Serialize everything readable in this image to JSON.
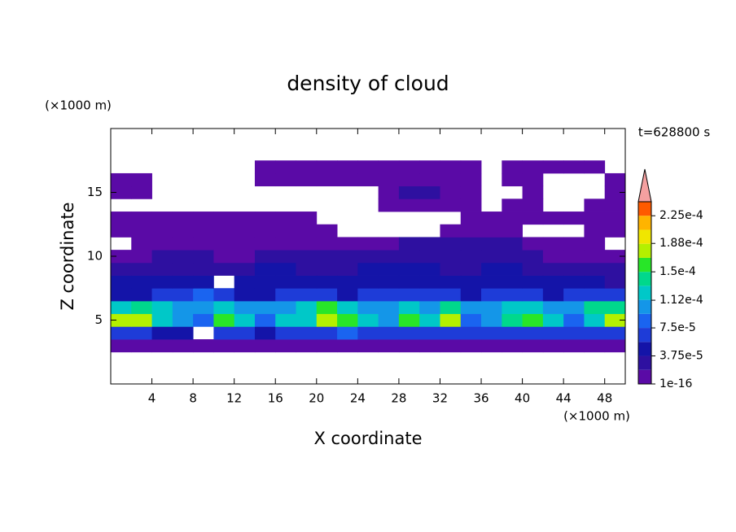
{
  "chart_data": {
    "type": "contour",
    "title": "density of cloud",
    "xlabel": "X coordinate",
    "ylabel": "Z coordinate",
    "x_unit": "(×1000 m)",
    "y_unit": "(×1000 m)",
    "annotation": "t=628800 s",
    "xlim": [
      0,
      50
    ],
    "ylim": [
      0,
      20
    ],
    "xticks": [
      4,
      8,
      12,
      16,
      20,
      24,
      28,
      32,
      36,
      40,
      44,
      48
    ],
    "yticks": [
      5,
      10,
      15
    ],
    "x": [
      1,
      3,
      5,
      7,
      9,
      11,
      13,
      15,
      17,
      19,
      21,
      23,
      25,
      27,
      29,
      31,
      33,
      35,
      37,
      39,
      41,
      43,
      45,
      47,
      49
    ],
    "y": [
      3,
      4,
      5,
      6,
      7,
      8,
      9,
      10,
      11,
      12,
      13,
      14,
      15,
      16,
      17
    ],
    "values": [
      [
        5e-06,
        5e-06,
        5e-06,
        5e-06,
        5e-06,
        5e-06,
        5e-06,
        5e-06,
        5e-06,
        5e-06,
        5e-06,
        5e-06,
        5e-06,
        5e-06,
        5e-06,
        5e-06,
        5e-06,
        5e-06,
        5e-06,
        5e-06,
        5e-06,
        5e-06,
        5e-06,
        5e-06,
        5e-06
      ],
      [
        6.5e-05,
        6.5e-05,
        4.5e-05,
        4.5e-05,
        null,
        6.5e-05,
        6.5e-05,
        4.5e-05,
        6.5e-05,
        6.5e-05,
        6.5e-05,
        8.5e-05,
        6.5e-05,
        6.5e-05,
        6.5e-05,
        6.5e-05,
        6.5e-05,
        6.5e-05,
        6.5e-05,
        6.5e-05,
        6.5e-05,
        6.5e-05,
        6.5e-05,
        6.5e-05,
        6.5e-05
      ],
      [
        0.00018,
        0.00018,
        0.00012,
        0.0001,
        8.5e-05,
        0.00016,
        0.00012,
        8.5e-05,
        0.00012,
        0.00012,
        0.00018,
        0.00016,
        0.00012,
        0.0001,
        0.00016,
        0.00012,
        0.00018,
        8.5e-05,
        0.0001,
        0.00014,
        0.00016,
        0.00012,
        8.5e-05,
        0.00012,
        0.00018
      ],
      [
        0.00012,
        0.00014,
        0.00012,
        0.0001,
        0.0001,
        0.00012,
        0.0001,
        0.0001,
        0.0001,
        0.00012,
        0.00016,
        0.00012,
        0.0001,
        0.0001,
        0.00012,
        0.0001,
        0.00014,
        0.0001,
        0.0001,
        0.00012,
        0.00012,
        0.0001,
        0.0001,
        0.00014,
        0.00014
      ],
      [
        4.5e-05,
        4.5e-05,
        6.5e-05,
        6.5e-05,
        8.5e-05,
        6.5e-05,
        4.5e-05,
        4.5e-05,
        6.5e-05,
        6.5e-05,
        6.5e-05,
        4.5e-05,
        6.5e-05,
        6.5e-05,
        6.5e-05,
        6.5e-05,
        6.5e-05,
        4.5e-05,
        6.5e-05,
        6.5e-05,
        6.5e-05,
        4.5e-05,
        6.5e-05,
        6.5e-05,
        6.5e-05
      ],
      [
        4.5e-05,
        4.5e-05,
        4.5e-05,
        4.5e-05,
        4.5e-05,
        null,
        4.5e-05,
        4.5e-05,
        4.5e-05,
        4.5e-05,
        4.5e-05,
        4.5e-05,
        4.5e-05,
        4.5e-05,
        4.5e-05,
        4.5e-05,
        4.5e-05,
        4.5e-05,
        4.5e-05,
        4.5e-05,
        4.5e-05,
        4.5e-05,
        4.5e-05,
        4.5e-05,
        2.5e-05
      ],
      [
        2.5e-05,
        2.5e-05,
        2.5e-05,
        2.5e-05,
        2.5e-05,
        2.5e-05,
        2.5e-05,
        4.5e-05,
        4.5e-05,
        2.5e-05,
        2.5e-05,
        2.5e-05,
        4.5e-05,
        4.5e-05,
        4.5e-05,
        4.5e-05,
        2.5e-05,
        2.5e-05,
        4.5e-05,
        4.5e-05,
        2.5e-05,
        2.5e-05,
        2.5e-05,
        2.5e-05,
        2.5e-05
      ],
      [
        5e-06,
        5e-06,
        2.5e-05,
        2.5e-05,
        2.5e-05,
        5e-06,
        5e-06,
        2.5e-05,
        2.5e-05,
        2.5e-05,
        2.5e-05,
        2.5e-05,
        2.5e-05,
        2.5e-05,
        2.5e-05,
        2.5e-05,
        2.5e-05,
        2.5e-05,
        2.5e-05,
        2.5e-05,
        2.5e-05,
        5e-06,
        5e-06,
        5e-06,
        5e-06
      ],
      [
        null,
        5e-06,
        5e-06,
        5e-06,
        5e-06,
        5e-06,
        5e-06,
        5e-06,
        5e-06,
        5e-06,
        5e-06,
        5e-06,
        5e-06,
        5e-06,
        2.5e-05,
        2.5e-05,
        2.5e-05,
        2.5e-05,
        2.5e-05,
        2.5e-05,
        5e-06,
        5e-06,
        5e-06,
        5e-06,
        null
      ],
      [
        5e-06,
        5e-06,
        5e-06,
        5e-06,
        5e-06,
        5e-06,
        5e-06,
        5e-06,
        5e-06,
        5e-06,
        5e-06,
        null,
        null,
        null,
        null,
        null,
        5e-06,
        5e-06,
        5e-06,
        5e-06,
        null,
        null,
        null,
        5e-06,
        5e-06
      ],
      [
        5e-06,
        5e-06,
        5e-06,
        5e-06,
        5e-06,
        5e-06,
        5e-06,
        5e-06,
        5e-06,
        5e-06,
        null,
        null,
        null,
        null,
        null,
        null,
        null,
        5e-06,
        5e-06,
        5e-06,
        5e-06,
        5e-06,
        5e-06,
        5e-06,
        5e-06
      ],
      [
        null,
        null,
        null,
        null,
        null,
        null,
        null,
        null,
        null,
        null,
        null,
        null,
        null,
        5e-06,
        5e-06,
        5e-06,
        5e-06,
        5e-06,
        null,
        5e-06,
        5e-06,
        null,
        null,
        5e-06,
        5e-06
      ],
      [
        5e-06,
        5e-06,
        null,
        null,
        null,
        null,
        null,
        null,
        null,
        null,
        null,
        null,
        null,
        5e-06,
        2.5e-05,
        2.5e-05,
        5e-06,
        5e-06,
        null,
        null,
        5e-06,
        null,
        null,
        null,
        5e-06
      ],
      [
        5e-06,
        5e-06,
        null,
        null,
        null,
        null,
        null,
        5e-06,
        5e-06,
        5e-06,
        5e-06,
        5e-06,
        5e-06,
        5e-06,
        5e-06,
        5e-06,
        5e-06,
        5e-06,
        null,
        5e-06,
        5e-06,
        null,
        null,
        null,
        5e-06
      ],
      [
        null,
        null,
        null,
        null,
        null,
        null,
        null,
        5e-06,
        5e-06,
        5e-06,
        5e-06,
        5e-06,
        5e-06,
        5e-06,
        5e-06,
        5e-06,
        5e-06,
        5e-06,
        null,
        5e-06,
        5e-06,
        5e-06,
        5e-06,
        5e-06,
        null
      ]
    ],
    "colorbar": {
      "levels": [
        1e-16,
        1.875e-05,
        3.75e-05,
        5.625e-05,
        7.5e-05,
        9.375e-05,
        0.0001125,
        0.00013125,
        0.00015,
        0.00016875,
        0.0001875,
        0.00020625,
        0.000225,
        0.00024375
      ],
      "colors": [
        "#5a0aa6",
        "#2e10a0",
        "#1414a8",
        "#1e3cd8",
        "#1a64f0",
        "#1496e8",
        "#00c8c8",
        "#00d88c",
        "#28e628",
        "#b4f000",
        "#f0e600",
        "#ffb400",
        "#ff5a00"
      ],
      "over_color": "#f4a0a0",
      "ticks": [
        1e-16,
        {
          "value": 3.75e-05,
          "label": "3.75e-5"
        },
        {
          "value": 7.5e-05,
          "label": "7.5e-5"
        },
        {
          "value": 0.000112,
          "label": "1.12e-4"
        },
        {
          "value": 0.00015,
          "label": "1.5e-4"
        },
        {
          "value": 0.000188,
          "label": "1.88e-4"
        },
        {
          "value": 0.000225,
          "label": "2.25e-4"
        }
      ]
    }
  }
}
